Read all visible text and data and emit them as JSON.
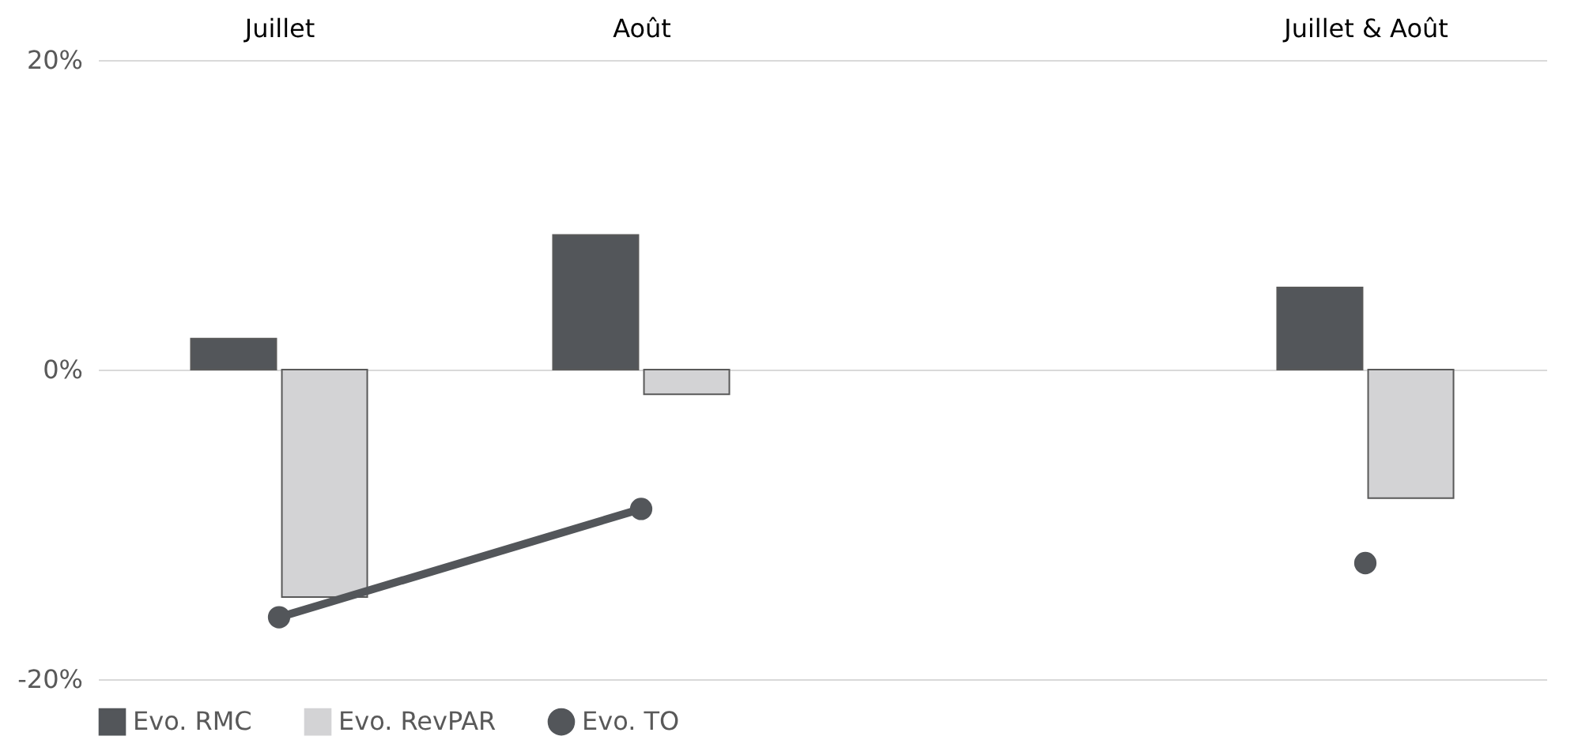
{
  "chart_data": {
    "type": "bar",
    "categories": [
      "Juillet",
      "Août",
      null,
      "Juillet & Août"
    ],
    "series": [
      {
        "name": "Evo. RMC",
        "color": "#53565a",
        "values": [
          2.0,
          8.7,
          null,
          5.3
        ]
      },
      {
        "name": "Evo. RevPAR",
        "color": "#d3d3d5",
        "values": [
          -14.7,
          -1.6,
          null,
          -8.3
        ]
      },
      {
        "name": "Evo. TO",
        "type": "line",
        "color": "#53565a",
        "values": [
          -16.0,
          -9.0,
          null,
          -12.5
        ]
      }
    ],
    "ylim": [
      -20,
      20
    ],
    "yticks": [
      {
        "value": -20,
        "label": "-20%"
      },
      {
        "value": 0,
        "label": "0%"
      },
      {
        "value": 20,
        "label": "20%"
      }
    ],
    "grid": "y",
    "legend": "bottom",
    "marker": "circle"
  }
}
